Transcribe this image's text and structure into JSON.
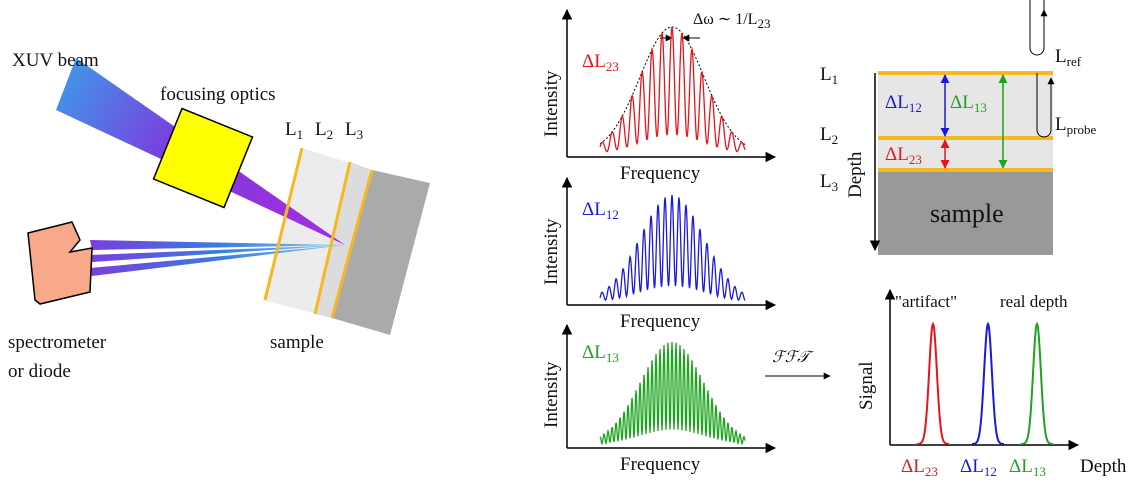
{
  "setup": {
    "beam": "XUV beam",
    "optics": "focusing optics",
    "layers": [
      {
        "main": "L",
        "sub": "1"
      },
      {
        "main": "L",
        "sub": "2"
      },
      {
        "main": "L",
        "sub": "3"
      }
    ],
    "detector": [
      "spectrometer",
      "or diode"
    ],
    "sample": "sample"
  },
  "spectra": [
    {
      "label": {
        "main": "ΔL",
        "sub": "23"
      },
      "color": "#e8141b",
      "ylabel": "Intensity",
      "xlabel": "Frequency",
      "annotation": {
        "main": "Δω ∼ 1/L",
        "sub": "23"
      }
    },
    {
      "label": {
        "main": "ΔL",
        "sub": "12"
      },
      "color": "#1a1adf",
      "ylabel": "Intensity",
      "xlabel": "Frequency"
    },
    {
      "label": {
        "main": "ΔL",
        "sub": "13"
      },
      "color": "#1ea31e",
      "ylabel": "Intensity",
      "xlabel": "Frequency"
    }
  ],
  "transform": "ℱℱ𝒯",
  "layer_diagram": {
    "layers": [
      {
        "main": "L",
        "sub": "1"
      },
      {
        "main": "L",
        "sub": "2"
      },
      {
        "main": "L",
        "sub": "3"
      }
    ],
    "axis": "Depth",
    "sample": "sample",
    "thicknesses": [
      {
        "main": "ΔL",
        "sub": "12"
      },
      {
        "main": "ΔL",
        "sub": "13"
      },
      {
        "main": "ΔL",
        "sub": "23"
      }
    ],
    "reference": {
      "main": "L",
      "sub": "ref"
    },
    "probe": {
      "main": "L",
      "sub": "probe"
    }
  },
  "signal": {
    "ylabel": "Signal",
    "xlabel": "Depth",
    "notes": [
      "\"artifact\"",
      "real depth"
    ],
    "peaks": [
      {
        "label": {
          "main": "ΔL",
          "sub": "23"
        },
        "color": "#e8141b"
      },
      {
        "label": {
          "main": "ΔL",
          "sub": "12"
        },
        "color": "#1a1adf"
      },
      {
        "label": {
          "main": "ΔL",
          "sub": "13"
        },
        "color": "#1ea31e"
      }
    ]
  }
}
